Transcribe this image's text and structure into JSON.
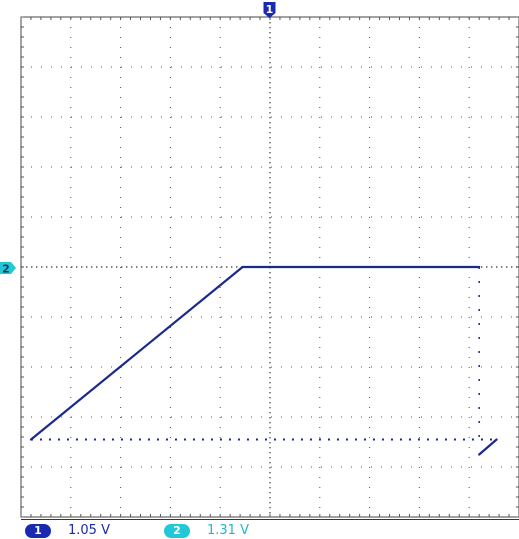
{
  "chart_data": {
    "type": "line",
    "title": "",
    "xlabel": "",
    "ylabel": "",
    "grid": true,
    "xlim": [
      -5,
      5
    ],
    "ylim": [
      -5,
      5
    ],
    "divisions": {
      "x": 10,
      "y": 10
    },
    "series": [
      {
        "channel": "1",
        "color": "#1a2a8a",
        "x": [
          -4.8,
          -0.55,
          4.2
        ],
        "y": [
          -3.45,
          0.0,
          0.0
        ]
      },
      {
        "channel": "1",
        "color": "#1a2a8a",
        "x": [
          4.2,
          4.55
        ],
        "y": [
          -3.75,
          -3.45
        ]
      }
    ],
    "dotted_baseline": {
      "y": -3.45,
      "x_from": -4.8,
      "x_to": 4.55
    },
    "dotted_vertical": {
      "x": 4.2,
      "y_from": -3.6,
      "y_to": 0.0
    }
  },
  "markers": {
    "ch1_top": "1",
    "ch2_left": "2"
  },
  "colors": {
    "ch1": "#1a2ab0",
    "ch2": "#20c8d8",
    "trace": "#1a2a8a",
    "grid": "#555555"
  },
  "status": {
    "ch1_label": "1",
    "ch1_scale": "1.05 V",
    "ch2_label": "2",
    "ch2_scale": "1.31 V"
  }
}
